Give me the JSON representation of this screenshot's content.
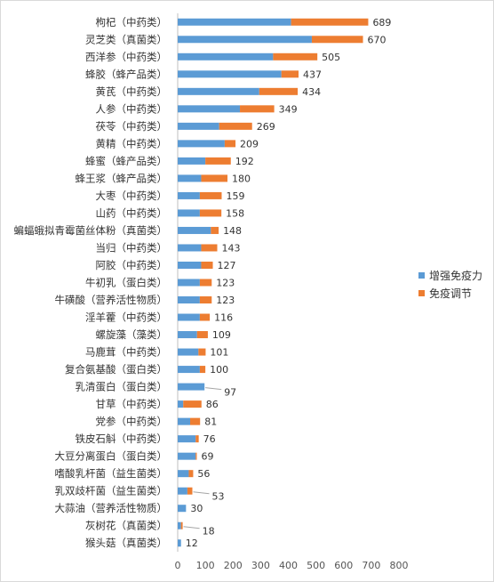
{
  "chart_data": {
    "type": "bar",
    "orientation": "horizontal",
    "stacked": true,
    "categories": [
      "枸杞（中药类）",
      "灵芝类（真菌类）",
      "西洋参（中药类）",
      "蜂胶（蜂产品类）",
      "黄芪（中药类）",
      "人参（中药类）",
      "茯苓（中药类）",
      "黄精（中药类）",
      "蜂蜜（蜂产品类）",
      "蜂王浆（蜂产品类）",
      "大枣（中药类）",
      "山药（中药类）",
      "蝙蝠蛾拟青霉菌丝体粉（真菌类）",
      "当归（中药类）",
      "阿胶（中药类）",
      "牛初乳（蛋白类）",
      "牛磺酸（营养活性物质）",
      "淫羊藿（中药类）",
      "螺旋藻（藻类）",
      "马鹿茸（中药类）",
      "复合氨基酸（蛋白类）",
      "乳清蛋白（蛋白类）",
      "甘草（中药类）",
      "党参（中药类）",
      "铁皮石斛（中药类）",
      "大豆分离蛋白（蛋白类）",
      "嗜酸乳杆菌（益生菌类）",
      "乳双歧杆菌（益生菌类）",
      "大蒜油（营养活性物质）",
      "灰树花（真菌类）",
      "猴头菇（真菌类）"
    ],
    "series": [
      {
        "name": "增强免疫力",
        "color": "#5b9bd5",
        "values": [
          410,
          485,
          345,
          375,
          295,
          225,
          150,
          170,
          100,
          85,
          80,
          80,
          120,
          85,
          85,
          80,
          80,
          80,
          70,
          75,
          80,
          97,
          20,
          45,
          65,
          65,
          40,
          35,
          30,
          12,
          12
        ]
      },
      {
        "name": "免疫调节",
        "color": "#ed7d31",
        "values": [
          279,
          185,
          160,
          62,
          139,
          124,
          119,
          39,
          92,
          95,
          79,
          78,
          28,
          58,
          42,
          43,
          43,
          36,
          39,
          26,
          20,
          0,
          66,
          36,
          11,
          4,
          16,
          18,
          0,
          6,
          0
        ]
      }
    ],
    "totals": [
      "689",
      "670",
      "505",
      "437",
      "434",
      "349",
      "269",
      "209",
      "192",
      "180",
      "159",
      "158",
      "148",
      "143",
      "127",
      "123",
      "123",
      "116",
      "109",
      "101",
      "100",
      "97",
      "86",
      "81",
      "76",
      "69",
      "56",
      "53",
      "30",
      "18",
      "12"
    ],
    "x_ticks": [
      "0",
      "100",
      "200",
      "300",
      "400",
      "500",
      "600",
      "700",
      "800"
    ],
    "xlim": [
      0,
      800
    ],
    "legend_position": "right",
    "grid": false
  }
}
